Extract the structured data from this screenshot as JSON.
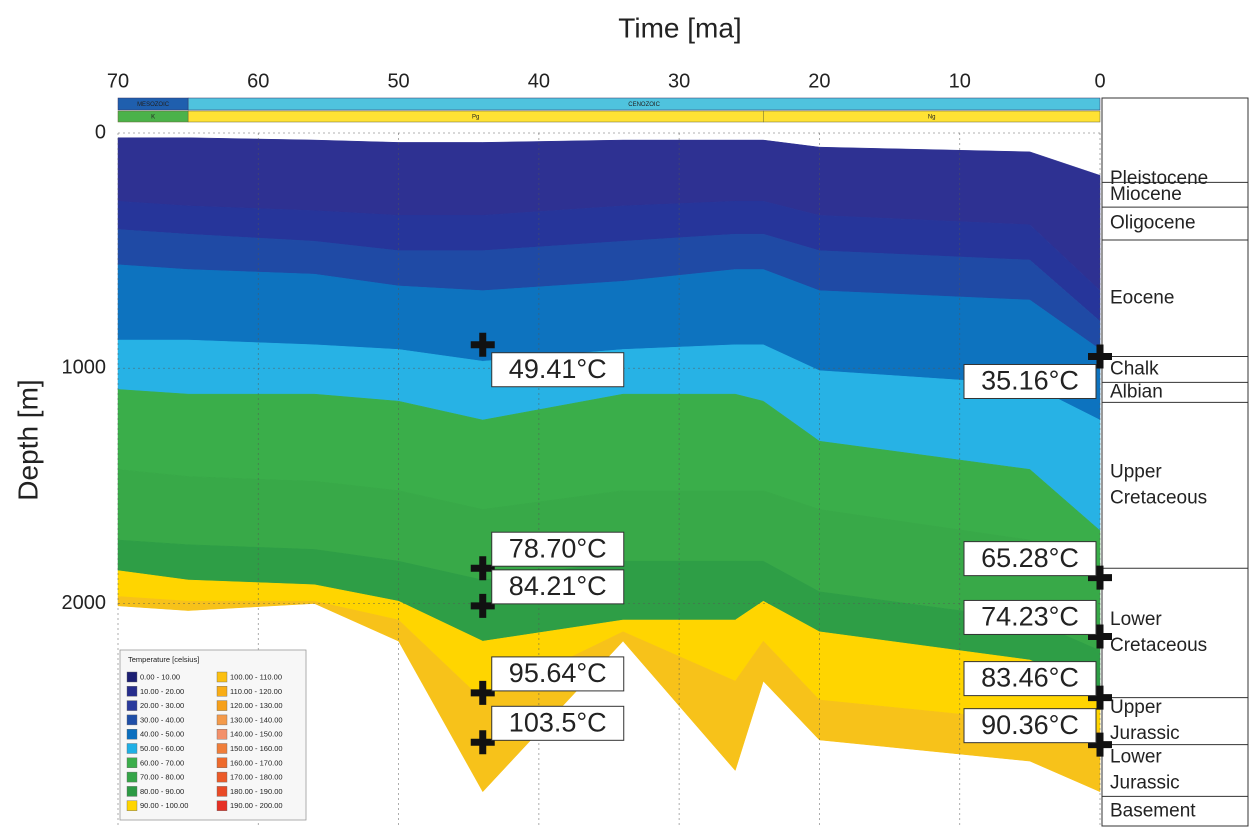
{
  "chart_data": {
    "type": "area",
    "title": "Time [ma]",
    "y_label": "Depth [m]",
    "xlim": [
      70,
      0
    ],
    "xticks": [
      70,
      60,
      50,
      40,
      30,
      20,
      10,
      0
    ],
    "ylim": [
      0,
      2950
    ],
    "yticks": [
      0,
      1000,
      2000
    ],
    "grid": true,
    "x": [
      70,
      65,
      56,
      50,
      44,
      34,
      26,
      24,
      20,
      5,
      0
    ],
    "series": [
      {
        "color": "#2e3192",
        "values": [
          20,
          20,
          30,
          40,
          40,
          30,
          30,
          30,
          60,
          80,
          180
        ]
      },
      {
        "color": "#26359a",
        "values": [
          290,
          310,
          330,
          350,
          350,
          310,
          290,
          290,
          350,
          390,
          670
        ]
      },
      {
        "color": "#1f4aa5",
        "values": [
          410,
          430,
          460,
          500,
          500,
          460,
          430,
          430,
          500,
          540,
          800
        ]
      },
      {
        "color": "#0d73bf",
        "values": [
          560,
          580,
          600,
          650,
          670,
          630,
          580,
          580,
          670,
          710,
          920
        ]
      },
      {
        "color": "#27b2e5",
        "values": [
          880,
          880,
          900,
          920,
          970,
          920,
          900,
          900,
          1010,
          1070,
          1220
        ]
      },
      {
        "color": "#3aae4a",
        "values": [
          1090,
          1110,
          1110,
          1140,
          1220,
          1110,
          1110,
          1140,
          1310,
          1430,
          1690
        ]
      },
      {
        "color": "#38a948",
        "values": [
          1430,
          1460,
          1480,
          1520,
          1600,
          1520,
          1520,
          1520,
          1600,
          1730,
          1900
        ]
      },
      {
        "color": "#2e9e46",
        "values": [
          1730,
          1750,
          1770,
          1820,
          1900,
          1820,
          1820,
          1820,
          1950,
          2070,
          2200
        ]
      },
      {
        "color": "#ffd500",
        "values": [
          1860,
          1900,
          1920,
          1990,
          2160,
          2070,
          2070,
          1990,
          2120,
          2240,
          2370
        ]
      },
      {
        "color": "#f7c21a",
        "values": [
          1970,
          1990,
          1990,
          2070,
          2410,
          2120,
          2330,
          2160,
          2410,
          2500,
          2540
        ]
      },
      {
        "values": [
          2010,
          2030,
          2000,
          2160,
          2800,
          2160,
          2710,
          2330,
          2580,
          2670,
          2800
        ]
      }
    ],
    "eras": [
      {
        "name": "MESOZOIC",
        "start": 70,
        "end": 65,
        "color": "#1f5fae"
      },
      {
        "name": "CENOZOIC",
        "start": 65,
        "end": 0,
        "color": "#4fc3de"
      }
    ],
    "periods": [
      {
        "name": "K",
        "start": 70,
        "end": 65,
        "color": "#4bb24a"
      },
      {
        "name": "Pg",
        "start": 65,
        "end": 24,
        "color": "#ffe234"
      },
      {
        "name": "Ng",
        "start": 24,
        "end": 0,
        "color": "#ffe234"
      }
    ],
    "formations": [
      {
        "name": [
          "Pleistocene"
        ],
        "base": 210
      },
      {
        "name": [
          "Miocene"
        ],
        "base": 315
      },
      {
        "name": [
          "Oligocene"
        ],
        "base": 455
      },
      {
        "name": [
          "Eocene"
        ],
        "base": 950
      },
      {
        "name": [
          "Chalk"
        ],
        "base": 1060
      },
      {
        "name": [
          "Albian"
        ],
        "base": 1145
      },
      {
        "name": [
          "Upper",
          "Cretaceous"
        ],
        "base": 1850
      },
      {
        "name": [
          "Lower",
          "Cretaceous"
        ],
        "base": 2400
      },
      {
        "name": [
          "Upper",
          "Jurassic"
        ],
        "base": 2600
      },
      {
        "name": [
          "Lower",
          "Jurassic"
        ],
        "base": 2820
      },
      {
        "name": [
          "Basement"
        ]
      }
    ],
    "annotations": [
      {
        "label": "49.41°C",
        "time": 44,
        "depth": 900,
        "position": "right"
      },
      {
        "label": "78.70°C",
        "time": 44,
        "depth": 1850,
        "position": "right"
      },
      {
        "label": "84.21°C",
        "time": 44,
        "depth": 2010,
        "position": "right"
      },
      {
        "label": "95.64°C",
        "time": 44,
        "depth": 2380,
        "position": "right"
      },
      {
        "label": "103.5°C",
        "time": 44,
        "depth": 2590,
        "position": "right"
      },
      {
        "label": "35.16°C",
        "time": 0,
        "depth": 950,
        "position": "left"
      },
      {
        "label": "65.28°C",
        "time": 0,
        "depth": 1890,
        "position": "left"
      },
      {
        "label": "74.23°C",
        "time": 0,
        "depth": 2140,
        "position": "left"
      },
      {
        "label": "83.46°C",
        "time": 0,
        "depth": 2400,
        "position": "left"
      },
      {
        "label": "90.36°C",
        "time": 0,
        "depth": 2600,
        "position": "left"
      }
    ],
    "legend": {
      "title": "Temperature [celsius]",
      "items": [
        {
          "label": "0.00 - 10.00",
          "color": "#1c1f73"
        },
        {
          "label": "10.00 - 20.00",
          "color": "#262d8c"
        },
        {
          "label": "20.00 - 30.00",
          "color": "#2a3a9c"
        },
        {
          "label": "30.00 - 40.00",
          "color": "#1f4fa8"
        },
        {
          "label": "40.00 - 50.00",
          "color": "#0a6fbf"
        },
        {
          "label": "50.00 - 60.00",
          "color": "#1fb0e6"
        },
        {
          "label": "60.00 - 70.00",
          "color": "#3bae4b"
        },
        {
          "label": "70.00 - 80.00",
          "color": "#35a548"
        },
        {
          "label": "80.00 - 90.00",
          "color": "#2c9a44"
        },
        {
          "label": "90.00 - 100.00",
          "color": "#ffd500"
        },
        {
          "label": "100.00 - 110.00",
          "color": "#fcc010"
        },
        {
          "label": "110.00 - 120.00",
          "color": "#f9ad15"
        },
        {
          "label": "120.00 - 130.00",
          "color": "#f6a01a"
        },
        {
          "label": "130.00 - 140.00",
          "color": "#f49a4a"
        },
        {
          "label": "140.00 - 150.00",
          "color": "#f3906a"
        },
        {
          "label": "150.00 - 160.00",
          "color": "#f07e3a"
        },
        {
          "label": "160.00 - 170.00",
          "color": "#ee6a2c"
        },
        {
          "label": "170.00 - 180.00",
          "color": "#ec5a28"
        },
        {
          "label": "180.00 - 190.00",
          "color": "#e94a26"
        },
        {
          "label": "190.00 - 200.00",
          "color": "#e63024"
        }
      ]
    }
  }
}
